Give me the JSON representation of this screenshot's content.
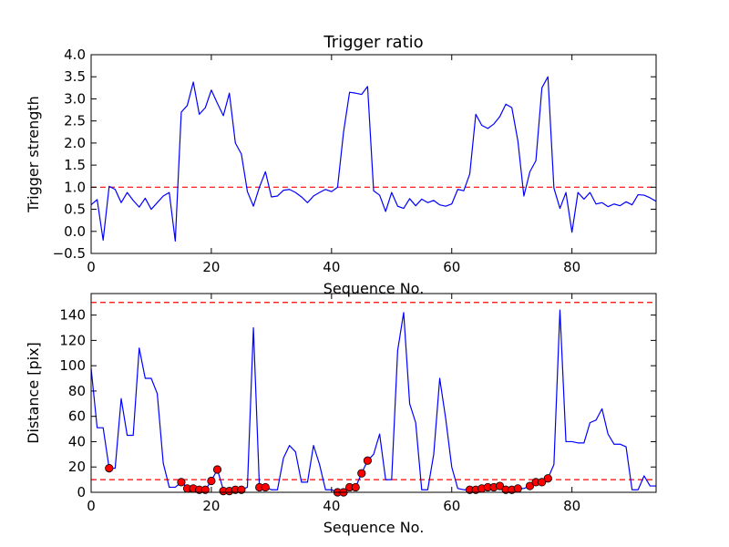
{
  "chart_data": [
    {
      "type": "line",
      "title": "Trigger ratio",
      "xlabel": "Sequence No.",
      "ylabel": "Trigger strength",
      "xlim": [
        0,
        94
      ],
      "ylim": [
        -0.5,
        4.0
      ],
      "xticks": [
        0,
        20,
        40,
        60,
        80
      ],
      "xtick_labels": [
        "0",
        "20",
        "40",
        "60",
        "80"
      ],
      "yticks": [
        -0.5,
        0.0,
        0.5,
        1.0,
        1.5,
        2.0,
        2.5,
        3.0,
        3.5,
        4.0
      ],
      "ytick_labels": [
        "−0.5",
        "0.0",
        "0.5",
        "1.0",
        "1.5",
        "2.0",
        "2.5",
        "3.0",
        "3.5",
        "4.0"
      ],
      "reference_lines": [
        1.0
      ],
      "series": [
        {
          "name": "trigger strength",
          "color": "#0000ff",
          "values": [
            0.6,
            0.72,
            -0.2,
            1.02,
            0.95,
            0.65,
            0.88,
            0.7,
            0.55,
            0.75,
            0.5,
            0.65,
            0.8,
            0.88,
            -0.22,
            2.7,
            2.85,
            3.38,
            2.65,
            2.8,
            3.2,
            2.9,
            2.62,
            3.13,
            2.0,
            1.75,
            0.9,
            0.57,
            1.0,
            1.35,
            0.78,
            0.8,
            0.93,
            0.95,
            0.88,
            0.78,
            0.65,
            0.8,
            0.88,
            0.95,
            0.9,
            1.0,
            2.25,
            3.15,
            3.13,
            3.1,
            3.28,
            0.92,
            0.82,
            0.45,
            0.88,
            0.57,
            0.52,
            0.74,
            0.58,
            0.73,
            0.65,
            0.7,
            0.6,
            0.57,
            0.62,
            0.95,
            0.92,
            1.3,
            2.65,
            2.4,
            2.33,
            2.43,
            2.6,
            2.88,
            2.8,
            2.05,
            0.8,
            1.35,
            1.6,
            3.25,
            3.5,
            0.98,
            0.52,
            0.88,
            -0.02,
            0.88,
            0.73,
            0.88,
            0.62,
            0.65,
            0.56,
            0.62,
            0.58,
            0.67,
            0.6,
            0.83,
            0.82,
            0.76,
            0.68
          ]
        }
      ]
    },
    {
      "type": "line",
      "title": "",
      "xlabel": "Sequence No.",
      "ylabel": "Distance [pix]",
      "xlim": [
        0,
        94
      ],
      "ylim": [
        0,
        157
      ],
      "xticks": [
        0,
        20,
        40,
        60,
        80
      ],
      "xtick_labels": [
        "0",
        "20",
        "40",
        "60",
        "80"
      ],
      "yticks": [
        0,
        20,
        40,
        60,
        80,
        100,
        120,
        140
      ],
      "ytick_labels": [
        "0",
        "20",
        "40",
        "60",
        "80",
        "100",
        "120",
        "140"
      ],
      "reference_lines": [
        10,
        150
      ],
      "series": [
        {
          "name": "distance",
          "color": "#0000ff",
          "values": [
            98,
            51,
            51,
            19,
            19,
            74,
            45,
            45,
            114,
            90,
            90,
            78,
            23,
            4,
            4,
            8,
            4,
            4,
            2,
            2,
            9,
            18,
            2,
            2,
            2,
            2,
            4,
            130,
            4,
            4,
            2,
            2,
            27,
            37,
            32,
            8,
            8,
            37,
            22,
            2,
            2,
            0,
            0,
            4,
            4,
            15,
            25,
            30,
            46,
            10,
            10,
            112,
            142,
            70,
            55,
            2,
            2,
            30,
            90,
            58,
            20,
            3,
            2,
            2,
            2,
            3,
            4,
            4,
            5,
            2,
            2,
            3,
            3,
            5,
            8,
            8,
            11,
            22,
            144,
            40,
            40,
            39,
            39,
            55,
            57,
            66,
            46,
            38,
            38,
            36,
            2,
            2,
            13,
            5,
            5
          ]
        },
        {
          "name": "selected points",
          "color": "#ff0000",
          "marker": "circle",
          "points": [
            [
              3,
              19
            ],
            [
              15,
              8
            ],
            [
              16,
              3
            ],
            [
              17,
              3
            ],
            [
              18,
              2
            ],
            [
              19,
              2
            ],
            [
              20,
              9
            ],
            [
              21,
              18
            ],
            [
              22,
              1
            ],
            [
              23,
              1
            ],
            [
              24,
              2
            ],
            [
              25,
              2
            ],
            [
              28,
              4
            ],
            [
              29,
              4
            ],
            [
              41,
              0
            ],
            [
              42,
              0
            ],
            [
              43,
              4
            ],
            [
              44,
              4
            ],
            [
              45,
              15
            ],
            [
              46,
              25
            ],
            [
              63,
              2
            ],
            [
              64,
              2
            ],
            [
              65,
              3
            ],
            [
              66,
              4
            ],
            [
              67,
              4
            ],
            [
              68,
              5
            ],
            [
              69,
              2
            ],
            [
              70,
              2
            ],
            [
              71,
              3
            ],
            [
              73,
              5
            ],
            [
              74,
              8
            ],
            [
              75,
              8
            ],
            [
              76,
              11
            ]
          ]
        }
      ]
    }
  ]
}
